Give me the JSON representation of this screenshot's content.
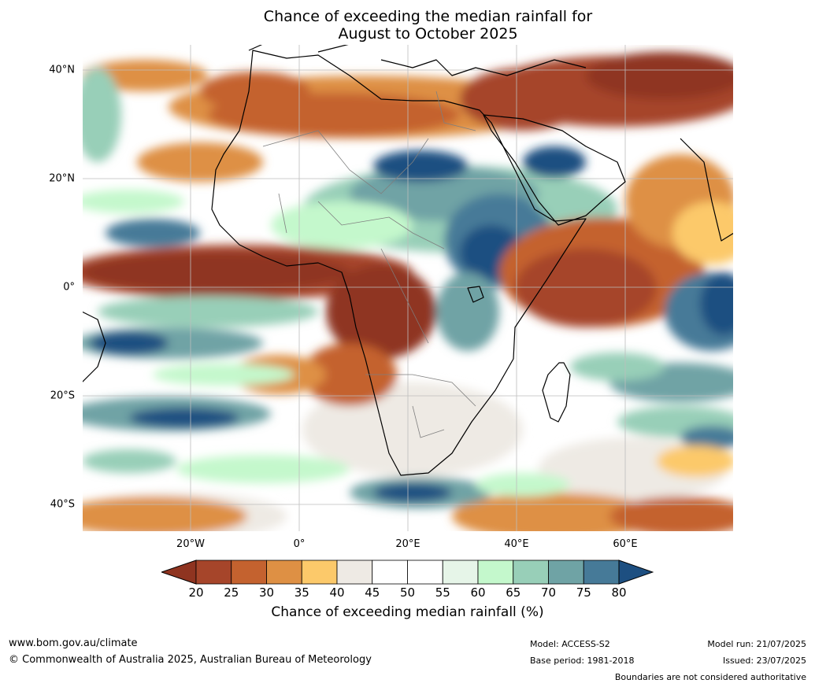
{
  "title": {
    "line1": "Chance of exceeding the median rainfall for",
    "line2": "August to October 2025"
  },
  "map": {
    "region": "Africa and surrounding oceans",
    "lat_range": [
      -45,
      45
    ],
    "lon_range": [
      -40,
      80
    ],
    "lat_labels": [
      "40°N",
      "20°N",
      "0°",
      "20°S",
      "40°S"
    ],
    "lon_labels": [
      "20°W",
      "0°",
      "20°E",
      "40°E",
      "60°E"
    ],
    "ocean_color": "#ffffff",
    "grid_color": "#bdbdbd"
  },
  "colorbar": {
    "ticks": [
      "20",
      "25",
      "30",
      "35",
      "40",
      "45",
      "50",
      "55",
      "60",
      "65",
      "70",
      "75",
      "80"
    ],
    "colors": [
      "#8f3420",
      "#a6452a",
      "#c4622f",
      "#de9044",
      "#fcc96a",
      "#eeeae4",
      "#ffffff",
      "#ffffff",
      "#e6f5e8",
      "#c4f8cc",
      "#98cfb8",
      "#6fa3a5",
      "#467a98",
      "#1d4f81"
    ],
    "label": "Chance of exceeding median rainfall (%)"
  },
  "footer": {
    "website": "www.bom.gov.au/climate",
    "copyright": "© Commonwealth of Australia 2025, Australian Bureau of Meteorology",
    "model": "Model: ACCESS-S2",
    "base_period": "Base period: 1981-2018",
    "model_run": "Model run: 21/07/2025",
    "issued": "Issued: 23/07/2025",
    "disclaimer": "Boundaries are not considered authoritative"
  }
}
